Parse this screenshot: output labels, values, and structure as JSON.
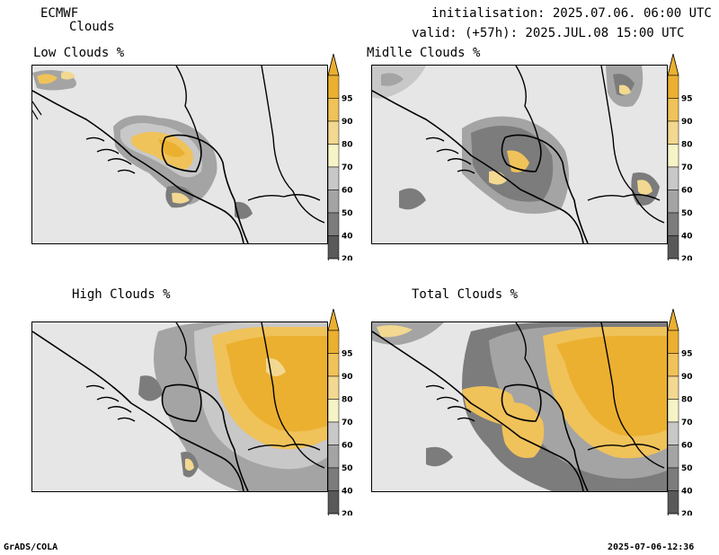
{
  "header": {
    "model": "ECMWF",
    "product": "Clouds",
    "init_line": "initialisation: 2025.07.06. 06:00 UTC",
    "valid_line": "valid: (+57h): 2025.JUL.08 15:00 UTC"
  },
  "panels": [
    {
      "id": "low",
      "title": "Low Clouds %"
    },
    {
      "id": "middle",
      "title": "Midlle Clouds %"
    },
    {
      "id": "high",
      "title": "High Clouds %"
    },
    {
      "id": "total",
      "title": "Total Clouds %"
    }
  ],
  "colorbar": {
    "ticks": [
      "95",
      "90",
      "80",
      "70",
      "60",
      "50",
      "40",
      "20"
    ],
    "colors": [
      "#ebb030",
      "#f0c25a",
      "#f2d890",
      "#f6f4c6",
      "#c8c8c8",
      "#a4a4a4",
      "#7c7c7c",
      "#595959"
    ],
    "under_color": "#ffffff",
    "over_color": "#ebb030"
  },
  "colors": {
    "land": "#e6e6e6",
    "boundary": "#000000",
    "lightgray": "#c8c8c8",
    "midgray": "#a4a4a4",
    "darkgray": "#7c7c7c",
    "darkest": "#595959",
    "cream": "#f6f4c6",
    "lightyellow": "#f2d890",
    "yellow": "#f0c25a",
    "orange": "#ebb030"
  },
  "footer": {
    "left": "GrADS/COLA",
    "right": "2025-07-06-12:36"
  }
}
